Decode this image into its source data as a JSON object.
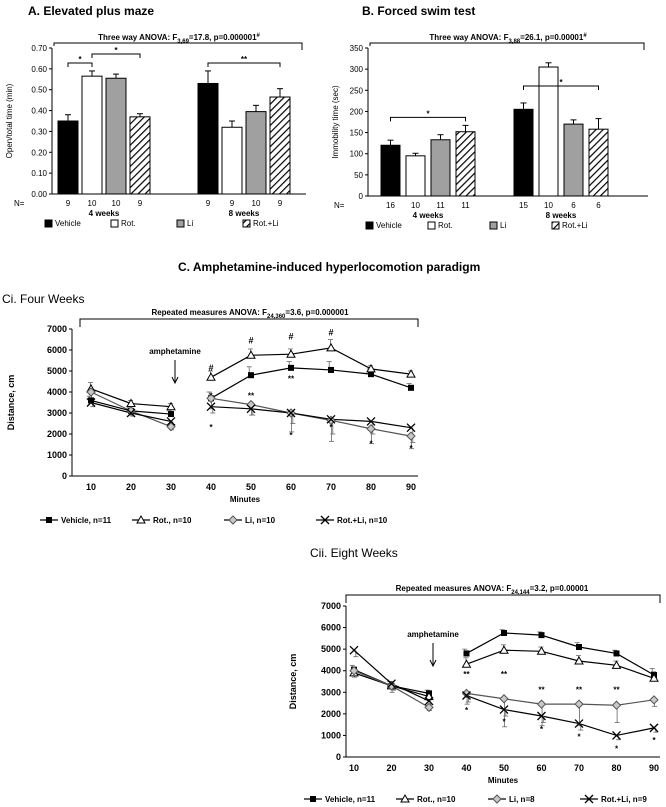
{
  "titles": {
    "a": "A. Elevated plus maze",
    "b": "B. Forced swim test",
    "c": "C. Amphetamine-induced hyperlocomotion paradigm",
    "ci": "Ci. Four Weeks",
    "cii": "Cii. Eight Weeks"
  },
  "colors": {
    "black": "#000000",
    "white": "#ffffff",
    "gray": "#a0a0a0",
    "hatch": "#000000"
  },
  "chart_data": [
    {
      "id": "epm",
      "type": "bar",
      "title": "A. Elevated plus maze",
      "ylabel": "Open/total time (min)",
      "ylim": [
        0,
        0.7
      ],
      "yticks": [
        "0.00",
        "0.10",
        "0.20",
        "0.30",
        "0.40",
        "0.50",
        "0.60",
        "0.70"
      ],
      "groups": [
        "4 weeks",
        "8 weeks"
      ],
      "n_label": "N=",
      "stats_text": "Three way ANOVA: F3,69=17.8, p=0.000001#",
      "series": [
        {
          "name": "Vehicle",
          "values": [
            0.35,
            0.53
          ],
          "errors": [
            0.03,
            0.06
          ],
          "n": [
            "9",
            "9"
          ]
        },
        {
          "name": "Rot.",
          "values": [
            0.565,
            0.32
          ],
          "errors": [
            0.025,
            0.03
          ],
          "n": [
            "10",
            "9"
          ]
        },
        {
          "name": "Li",
          "values": [
            0.555,
            0.395
          ],
          "errors": [
            0.02,
            0.03
          ],
          "n": [
            "10",
            "10"
          ]
        },
        {
          "name": "Rot.+Li",
          "values": [
            0.37,
            0.465
          ],
          "errors": [
            0.015,
            0.04
          ],
          "n": [
            "9",
            "9"
          ]
        }
      ],
      "brackets": [
        {
          "g": 0,
          "a": 0,
          "b": 1,
          "label": "*"
        },
        {
          "g": 0,
          "a": 1,
          "b": 3,
          "label": "*"
        },
        {
          "g": 1,
          "a": 0,
          "b": 3,
          "label": "**"
        }
      ],
      "legend": [
        "Vehicle",
        "Rot.",
        "Li",
        "Rot.+Li"
      ]
    },
    {
      "id": "fst",
      "type": "bar",
      "title": "B. Forced swim test",
      "ylabel": "Immobility time (sec)",
      "ylim": [
        0,
        350
      ],
      "yticks": [
        "0",
        "50",
        "100",
        "150",
        "200",
        "250",
        "300",
        "350"
      ],
      "groups": [
        "4 weeks",
        "8 weeks"
      ],
      "n_label": "N=",
      "stats_text": "Three way ANOVA: F3,88=26.1, p=0.00001#",
      "series": [
        {
          "name": "Vehicle",
          "values": [
            120,
            205
          ],
          "errors": [
            12,
            15
          ],
          "n": [
            "16",
            "15"
          ]
        },
        {
          "name": "Rot.",
          "values": [
            95,
            305
          ],
          "errors": [
            6,
            10
          ],
          "n": [
            "10",
            "10"
          ]
        },
        {
          "name": "Li",
          "values": [
            133,
            170
          ],
          "errors": [
            12,
            10
          ],
          "n": [
            "11",
            "6"
          ]
        },
        {
          "name": "Rot.+Li",
          "values": [
            152,
            158
          ],
          "errors": [
            15,
            25
          ],
          "n": [
            "11",
            "6"
          ]
        }
      ],
      "brackets": [
        {
          "g": 0,
          "a": 0,
          "b": 3,
          "label": "*"
        },
        {
          "g": 1,
          "a": 0,
          "b": 3,
          "label": "*"
        }
      ],
      "legend": [
        "Vehicle",
        "Rot.",
        "Li",
        "Rot.+Li"
      ]
    },
    {
      "id": "four",
      "type": "line",
      "title": "Ci. Four Weeks",
      "xlabel": "Minutes",
      "ylabel": "Distance, cm",
      "ylim": [
        0,
        7000
      ],
      "yticks": [
        "0",
        "1000",
        "2000",
        "3000",
        "4000",
        "5000",
        "6000",
        "7000"
      ],
      "x": [
        10,
        20,
        30,
        40,
        50,
        60,
        70,
        80,
        90
      ],
      "xticks": [
        "10",
        "20",
        "30",
        "40",
        "50",
        "60",
        "70",
        "80",
        "90"
      ],
      "stats_text": "Repeated measures ANOVA: F24,360=3.6, p=0.000001",
      "annotation": "amphetamine",
      "series": [
        {
          "name": "Vehicle, n=11",
          "marker": "square",
          "values": [
            3600,
            3100,
            2950,
            3700,
            4800,
            5150,
            5050,
            4850,
            4200
          ],
          "errors": [
            200,
            150,
            150,
            300,
            400,
            300,
            400,
            250,
            200
          ]
        },
        {
          "name": "Rot., n=10",
          "marker": "triangle",
          "values": [
            4150,
            3450,
            3300,
            4700,
            5750,
            5800,
            6100,
            5100,
            4850
          ],
          "errors": [
            300,
            150,
            150,
            300,
            300,
            250,
            400,
            150,
            150
          ]
        },
        {
          "name": "Li, n=10",
          "marker": "diamond",
          "values": [
            4000,
            3100,
            2350,
            3700,
            3400,
            3000,
            2650,
            2250,
            1900
          ],
          "errors": [
            300,
            200,
            150,
            500,
            500,
            900,
            1000,
            700,
            600
          ]
        },
        {
          "name": "Rot.+Li, n=10",
          "marker": "x",
          "values": [
            3500,
            3000,
            2600,
            3300,
            3200,
            3000,
            2700,
            2600,
            2300
          ],
          "errors": [
            200,
            150,
            150,
            300,
            300,
            500,
            700,
            600,
            700
          ]
        }
      ],
      "labels": [
        {
          "x": 40,
          "y": 5000,
          "text": "#"
        },
        {
          "x": 40,
          "y": 3700,
          "text": "*"
        },
        {
          "x": 40,
          "y": 2200,
          "text": "*"
        },
        {
          "x": 50,
          "y": 6300,
          "text": "#"
        },
        {
          "x": 50,
          "y": 3700,
          "text": "**"
        },
        {
          "x": 60,
          "y": 6500,
          "text": "#"
        },
        {
          "x": 60,
          "y": 4500,
          "text": "**"
        },
        {
          "x": 60,
          "y": 1800,
          "text": "*"
        },
        {
          "x": 70,
          "y": 6700,
          "text": "#"
        },
        {
          "x": 70,
          "y": 2200,
          "text": "*"
        },
        {
          "x": 80,
          "y": 1400,
          "text": "*"
        },
        {
          "x": 90,
          "y": 1200,
          "text": "*"
        }
      ],
      "legend": [
        "Vehicle, n=11",
        "Rot., n=10",
        "Li, n=10",
        "Rot.+Li, n=10"
      ]
    },
    {
      "id": "eight",
      "type": "line",
      "title": "Cii. Eight Weeks",
      "xlabel": "Minutes",
      "ylabel": "Distance, cm",
      "ylim": [
        0,
        7000
      ],
      "yticks": [
        "0",
        "1000",
        "2000",
        "3000",
        "4000",
        "5000",
        "6000",
        "7000"
      ],
      "x": [
        10,
        20,
        30,
        40,
        50,
        60,
        70,
        80,
        90
      ],
      "xticks": [
        "10",
        "20",
        "30",
        "40",
        "50",
        "60",
        "70",
        "80",
        "90"
      ],
      "stats_text": "Repeated measures ANOVA: F24,144=3.2, p=0.00001",
      "annotation": "amphetamine",
      "series": [
        {
          "name": "Vehicle, n=11",
          "marker": "square",
          "values": [
            4050,
            3300,
            2950,
            4800,
            5750,
            5650,
            5100,
            4800,
            3800
          ],
          "errors": [
            200,
            200,
            150,
            200,
            150,
            150,
            200,
            150,
            300
          ]
        },
        {
          "name": "Rot., n=10",
          "marker": "triangle",
          "values": [
            3900,
            3300,
            2800,
            4300,
            4950,
            4900,
            4450,
            4250,
            3650
          ],
          "errors": [
            200,
            200,
            150,
            300,
            250,
            200,
            250,
            200,
            300
          ]
        },
        {
          "name": "Li, n=8",
          "marker": "diamond",
          "values": [
            4000,
            3300,
            2300,
            2950,
            2700,
            2450,
            2450,
            2400,
            2650
          ],
          "errors": [
            300,
            300,
            150,
            500,
            1300,
            1000,
            1000,
            800,
            300
          ]
        },
        {
          "name": "Rot.+Li, n=9",
          "marker": "x",
          "values": [
            4950,
            3400,
            2600,
            2850,
            2200,
            1900,
            1550,
            1000,
            1350
          ],
          "errors": [
            300,
            300,
            150,
            300,
            300,
            300,
            300,
            200,
            200
          ]
        }
      ],
      "labels": [
        {
          "x": 40,
          "y": 3700,
          "text": "**"
        },
        {
          "x": 40,
          "y": 2050,
          "text": "*"
        },
        {
          "x": 50,
          "y": 3700,
          "text": "**"
        },
        {
          "x": 50,
          "y": 1500,
          "text": "*"
        },
        {
          "x": 60,
          "y": 3000,
          "text": "**"
        },
        {
          "x": 60,
          "y": 1150,
          "text": "*"
        },
        {
          "x": 70,
          "y": 3000,
          "text": "**"
        },
        {
          "x": 70,
          "y": 800,
          "text": "*"
        },
        {
          "x": 80,
          "y": 3000,
          "text": "**"
        },
        {
          "x": 80,
          "y": 250,
          "text": "*"
        },
        {
          "x": 90,
          "y": 650,
          "text": "*"
        }
      ],
      "legend": [
        "Vehicle, n=11",
        "Rot., n=10",
        "Li, n=8",
        "Rot.+Li, n=9"
      ]
    }
  ]
}
